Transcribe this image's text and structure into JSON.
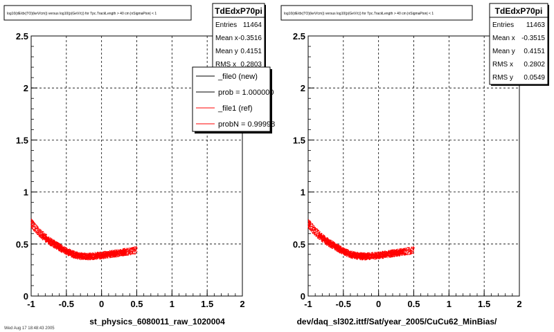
{
  "footer_note": "Wed Aug 17 18:48:43 2005",
  "chart_data": [
    {
      "type": "scatter",
      "title": "log10(dE/dx(TO)(keV/cm)) versus log10(p(GeV/c)) for Tpc.TrackLength > 40 cm |nSigmaPion| < 1",
      "xlabel": "st_physics_6080011_raw_1020004",
      "ylabel": "",
      "xlim": [
        -1,
        2
      ],
      "ylim": [
        0,
        2.5
      ],
      "x_ticks": [
        "-1",
        "-0.5",
        "0",
        "0.5",
        "1",
        "1.5",
        "2"
      ],
      "y_ticks": [
        "0",
        "0.5",
        "1",
        "1.5",
        "2",
        "2.5"
      ],
      "grid": true,
      "marker_color": "#ff0000",
      "band": {
        "x": [
          -1.0,
          -0.9,
          -0.8,
          -0.7,
          -0.6,
          -0.5,
          -0.4,
          -0.3,
          -0.2,
          -0.1,
          0.0,
          0.1,
          0.2,
          0.3,
          0.4,
          0.5
        ],
        "y": [
          0.7,
          0.62,
          0.56,
          0.51,
          0.47,
          0.43,
          0.4,
          0.385,
          0.38,
          0.385,
          0.39,
          0.4,
          0.41,
          0.42,
          0.43,
          0.44
        ]
      },
      "stats": {
        "name": "TdEdxP70pi",
        "rows": [
          {
            "label": "Entries",
            "value": "11464"
          },
          {
            "label": "Mean x",
            "value": "-0.3516"
          },
          {
            "label": "Mean y",
            "value": "0.4151"
          },
          {
            "label": "RMS x",
            "value": "0.2803"
          }
        ]
      },
      "legend": {
        "placement": "top-right",
        "entries": [
          {
            "label": "_file0 (new)",
            "color": "#000000"
          },
          {
            "label": "prob = 1.000000",
            "color": "#000000"
          },
          {
            "label": "_file1 (ref)",
            "color": "#ff0000"
          },
          {
            "label": "probN = 0.99998",
            "color": "#ff0000"
          }
        ]
      }
    },
    {
      "type": "scatter",
      "title": "log10(dE/dx(TO)(keV/cm)) versus log10(p(GeV/c)) for Tpc.TrackLength > 40 cm |nSigmaPion| < 1",
      "xlabel": "dev/daq_sl302.ittf/Sat/year_2005/CuCu62_MinBias/",
      "ylabel": "",
      "xlim": [
        -1,
        2
      ],
      "ylim": [
        0,
        2.5
      ],
      "x_ticks": [
        "-1",
        "-0.5",
        "0",
        "0.5",
        "1",
        "1.5",
        "2"
      ],
      "y_ticks": [
        "0",
        "0.5",
        "1",
        "1.5",
        "2",
        "2.5"
      ],
      "grid": true,
      "marker_color": "#ff0000",
      "band": {
        "x": [
          -1.0,
          -0.9,
          -0.8,
          -0.7,
          -0.6,
          -0.5,
          -0.4,
          -0.3,
          -0.2,
          -0.1,
          0.0,
          0.1,
          0.2,
          0.3,
          0.4,
          0.5
        ],
        "y": [
          0.7,
          0.62,
          0.56,
          0.51,
          0.47,
          0.43,
          0.4,
          0.385,
          0.38,
          0.385,
          0.39,
          0.4,
          0.41,
          0.42,
          0.43,
          0.44
        ]
      },
      "stats": {
        "name": "TdEdxP70pi",
        "rows": [
          {
            "label": "Entries",
            "value": "11463"
          },
          {
            "label": "Mean x",
            "value": "-0.3515"
          },
          {
            "label": "Mean y",
            "value": "0.4151"
          },
          {
            "label": "RMS x",
            "value": "0.2802"
          },
          {
            "label": "RMS y",
            "value": "0.0549"
          }
        ]
      },
      "legend": null
    }
  ]
}
